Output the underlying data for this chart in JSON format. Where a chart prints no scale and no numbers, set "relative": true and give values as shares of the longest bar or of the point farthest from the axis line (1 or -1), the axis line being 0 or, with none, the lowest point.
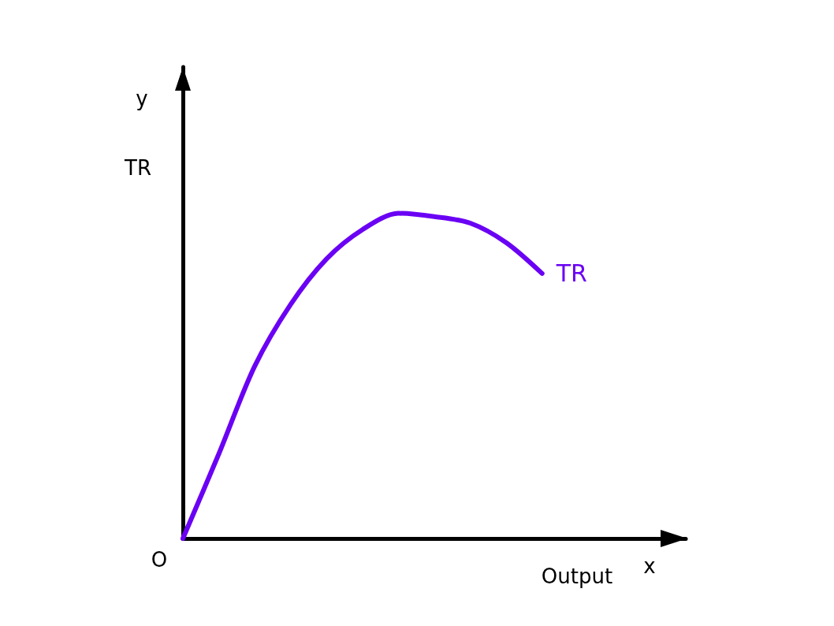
{
  "chart_data": {
    "type": "line",
    "relative": true,
    "annotations": [
      "TR",
      "O",
      "Output",
      "y",
      "x"
    ],
    "categories": [
      null,
      null,
      null,
      null,
      null,
      null,
      null,
      null,
      null,
      null,
      null,
      null,
      null,
      null,
      null
    ],
    "series": [
      {
        "name": "TR",
        "color": "#6a00f4",
        "values": [
          0,
          0.26,
          0.53,
          0.72,
          0.86,
          0.95,
          1,
          0.99,
          0.97,
          0.91,
          0.815,
          null,
          null,
          null,
          null
        ]
      }
    ],
    "marker": "none",
    "line_style": "solid"
  }
}
